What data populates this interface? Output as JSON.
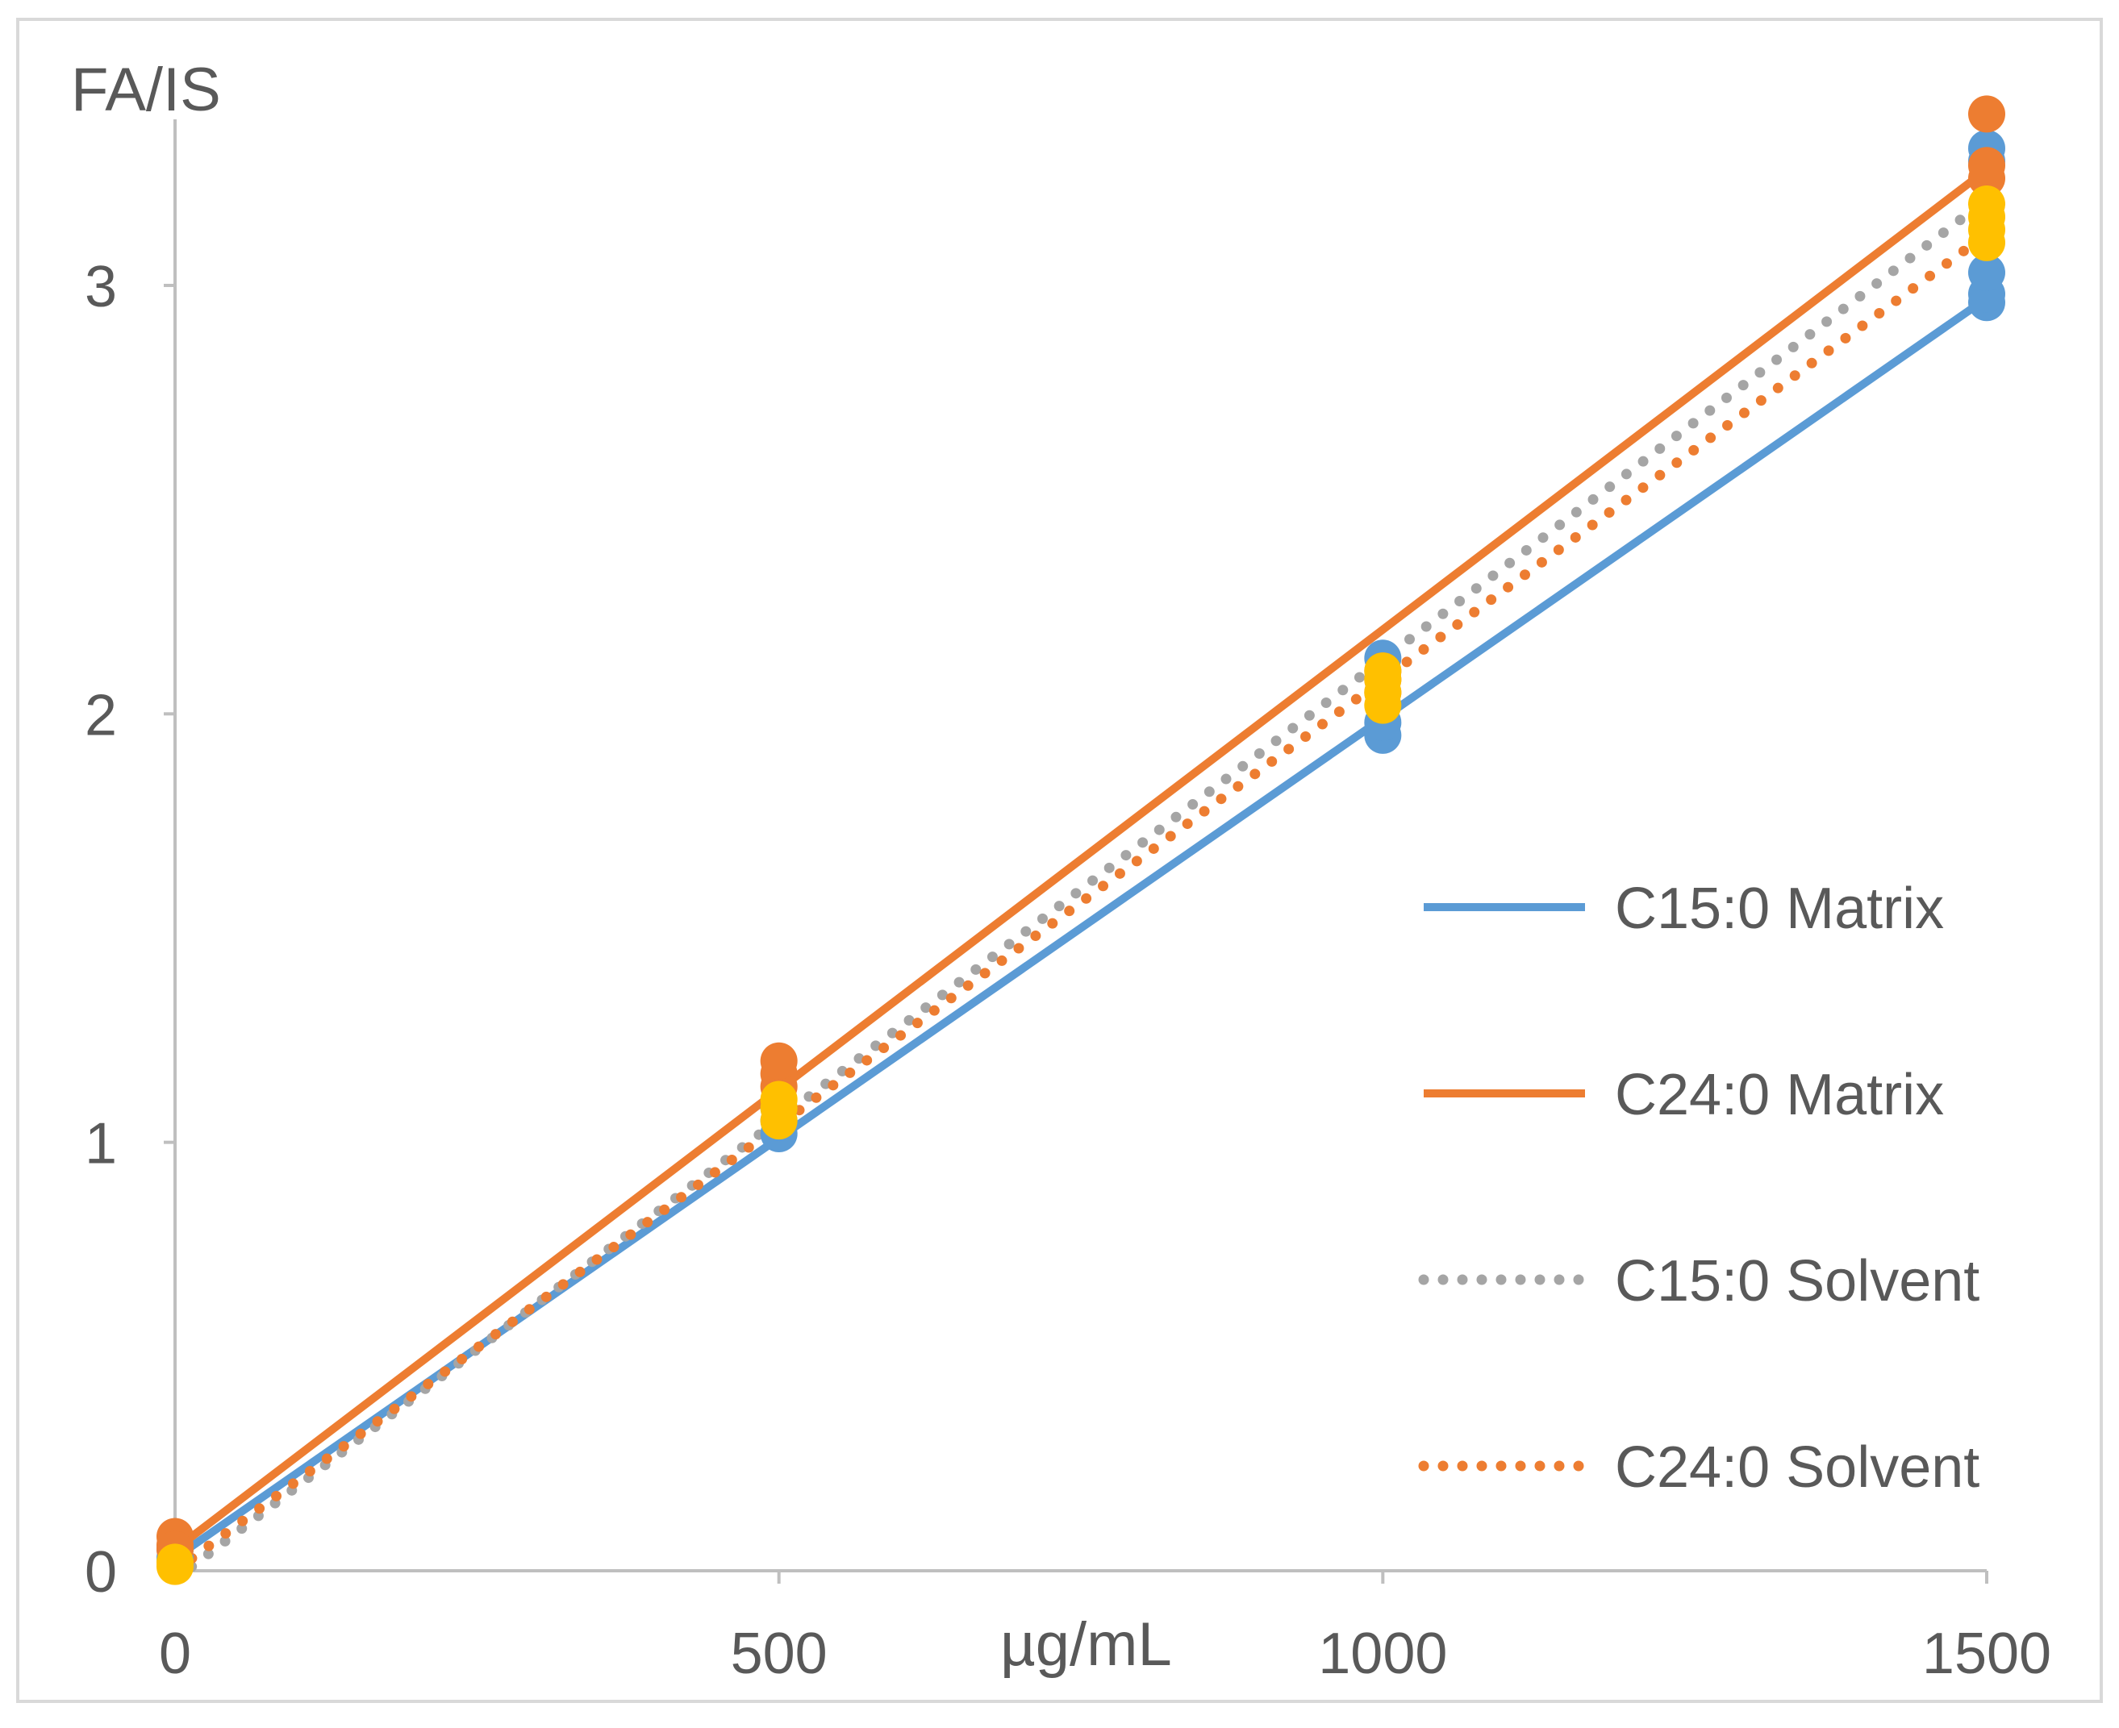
{
  "chart_data": {
    "type": "scatter",
    "title": "",
    "xlabel": "µg/mL",
    "ylabel": "FA/IS",
    "xlim": [
      0,
      1500
    ],
    "ylim": [
      0,
      3.35
    ],
    "x_ticks": [
      "0",
      "500",
      "1000",
      "1500"
    ],
    "y_ticks": [
      "0",
      "1",
      "2",
      "3"
    ],
    "grid": false,
    "legend_position": "right",
    "colors": {
      "blue": "#5b9bd5",
      "orange": "#ed7d31",
      "gray": "#a5a5a5",
      "yellow": "#ffc000",
      "axis": "#bfbfbf",
      "frame": "#d9d9d9",
      "text": "#595959"
    },
    "points": [
      {
        "color": "blue",
        "x": 0,
        "y": [
          0.03,
          0.05
        ]
      },
      {
        "color": "orange",
        "x": 0,
        "y": [
          0.06,
          0.08,
          0.05
        ]
      },
      {
        "color": "yellow",
        "x": 0,
        "y": [
          0.01,
          0.02
        ]
      },
      {
        "color": "blue",
        "x": 500,
        "y": [
          1.02,
          1.05,
          1.08
        ]
      },
      {
        "color": "orange",
        "x": 500,
        "y": [
          1.13,
          1.16,
          1.19
        ]
      },
      {
        "color": "yellow",
        "x": 500,
        "y": [
          1.05,
          1.08,
          1.1
        ]
      },
      {
        "color": "blue",
        "x": 1000,
        "y": [
          1.95,
          1.98,
          2.13
        ]
      },
      {
        "color": "orange",
        "x": 1000,
        "y": [
          2.05,
          2.08,
          2.1
        ]
      },
      {
        "color": "yellow",
        "x": 1000,
        "y": [
          2.02,
          2.05,
          2.08,
          2.1
        ]
      },
      {
        "color": "blue",
        "x": 1500,
        "y": [
          2.96,
          2.98,
          3.03,
          3.29,
          3.32
        ]
      },
      {
        "color": "orange",
        "x": 1500,
        "y": [
          3.25,
          3.28,
          3.4
        ]
      },
      {
        "color": "yellow",
        "x": 1500,
        "y": [
          3.1,
          3.13,
          3.16,
          3.19
        ]
      }
    ],
    "series": [
      {
        "name": "C15:0 Matrix",
        "color": "blue",
        "style": "solid",
        "x": [
          0,
          1500
        ],
        "y": [
          0.03,
          2.97
        ]
      },
      {
        "name": "C24:0 Matrix",
        "color": "orange",
        "style": "solid",
        "x": [
          0,
          1500
        ],
        "y": [
          0.05,
          3.27
        ]
      },
      {
        "name": "C15:0 Solvent",
        "color": "gray",
        "style": "dotted",
        "x": [
          0,
          1500
        ],
        "y": [
          -0.02,
          3.2
        ]
      },
      {
        "name": "C24:0 Solvent",
        "color": "orange",
        "style": "dotted",
        "x": [
          0,
          1500
        ],
        "y": [
          0.0,
          3.12
        ]
      }
    ]
  }
}
